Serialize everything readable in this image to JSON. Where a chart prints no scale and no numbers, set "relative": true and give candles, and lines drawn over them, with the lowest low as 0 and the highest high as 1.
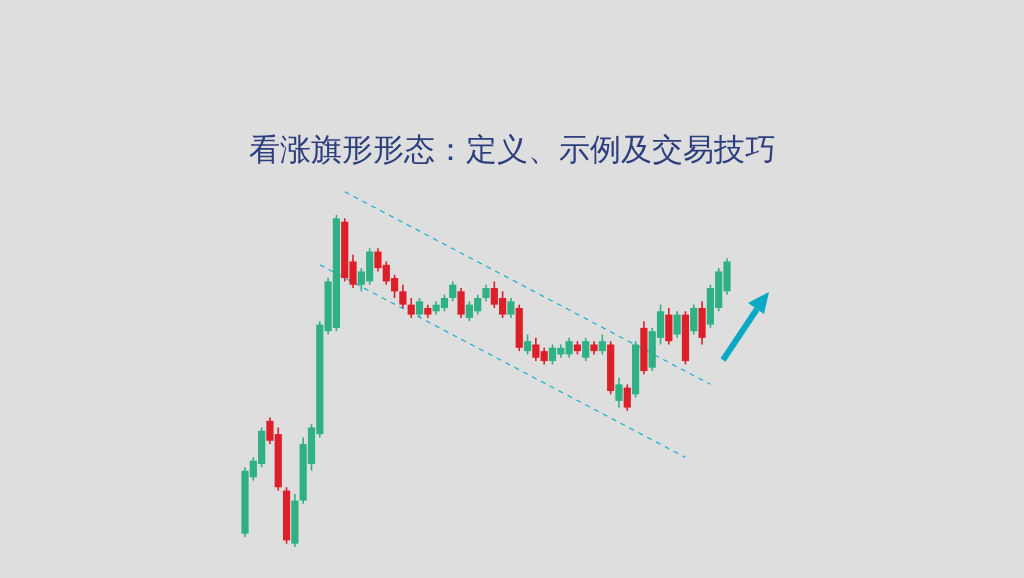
{
  "chart_data": {
    "type": "candlestick",
    "title": "看涨旗形形态：定义、示例及交易技巧",
    "relative": true,
    "line_style": "dashed",
    "categories": [
      null,
      null,
      null,
      null,
      null,
      null,
      null,
      null,
      null,
      null,
      null,
      null,
      null,
      null,
      null,
      null,
      null,
      null,
      null,
      null,
      null,
      null,
      null,
      null,
      null,
      null,
      null,
      null,
      null,
      null,
      null,
      null,
      null,
      null,
      null,
      null,
      null,
      null,
      null,
      null,
      null,
      null,
      null,
      null,
      null,
      null,
      null,
      null,
      null,
      null,
      null,
      null,
      null,
      null,
      null,
      null,
      null,
      null,
      null
    ],
    "ohlc": [
      [
        0.04,
        0.24,
        0.03,
        0.23
      ],
      [
        0.21,
        0.27,
        0.2,
        0.26
      ],
      [
        0.25,
        0.36,
        0.24,
        0.35
      ],
      [
        0.38,
        0.39,
        0.31,
        0.32
      ],
      [
        0.34,
        0.36,
        0.17,
        0.18
      ],
      [
        0.17,
        0.18,
        0.01,
        0.02
      ],
      [
        0.01,
        0.16,
        0,
        0.14
      ],
      [
        0.14,
        0.33,
        0.13,
        0.31
      ],
      [
        0.25,
        0.37,
        0.23,
        0.36
      ],
      [
        0.34,
        0.68,
        0.33,
        0.67
      ],
      [
        0.65,
        0.81,
        0.64,
        0.8
      ],
      [
        0.66,
        1,
        0.65,
        0.99
      ],
      [
        0.98,
        0.99,
        0.8,
        0.81
      ],
      [
        0.86,
        0.88,
        0.78,
        0.79
      ],
      [
        0.79,
        0.84,
        0.77,
        0.83
      ],
      [
        0.8,
        0.9,
        0.79,
        0.89
      ],
      [
        0.89,
        0.9,
        0.83,
        0.84
      ],
      [
        0.85,
        0.86,
        0.79,
        0.8
      ],
      [
        0.81,
        0.82,
        0.75,
        0.77
      ],
      [
        0.77,
        0.79,
        0.72,
        0.73
      ],
      [
        0.73,
        0.75,
        0.69,
        0.7
      ],
      [
        0.7,
        0.75,
        0.69,
        0.74
      ],
      [
        0.72,
        0.73,
        0.69,
        0.7
      ],
      [
        0.71,
        0.74,
        0.7,
        0.73
      ],
      [
        0.72,
        0.76,
        0.71,
        0.75
      ],
      [
        0.75,
        0.8,
        0.74,
        0.79
      ],
      [
        0.77,
        0.78,
        0.69,
        0.7
      ],
      [
        0.69,
        0.74,
        0.68,
        0.73
      ],
      [
        0.71,
        0.76,
        0.7,
        0.75
      ],
      [
        0.75,
        0.79,
        0.74,
        0.78
      ],
      [
        0.78,
        0.8,
        0.72,
        0.73
      ],
      [
        0.75,
        0.77,
        0.69,
        0.7
      ],
      [
        0.7,
        0.75,
        0.69,
        0.74
      ],
      [
        0.72,
        0.73,
        0.59,
        0.6
      ],
      [
        0.59,
        0.64,
        0.58,
        0.62
      ],
      [
        0.61,
        0.63,
        0.56,
        0.57
      ],
      [
        0.59,
        0.6,
        0.55,
        0.56
      ],
      [
        0.56,
        0.61,
        0.55,
        0.6
      ],
      [
        0.58,
        0.61,
        0.57,
        0.6
      ],
      [
        0.58,
        0.63,
        0.57,
        0.62
      ],
      [
        0.61,
        0.62,
        0.58,
        0.59
      ],
      [
        0.57,
        0.63,
        0.56,
        0.62
      ],
      [
        0.61,
        0.62,
        0.58,
        0.59
      ],
      [
        0.59,
        0.64,
        0.58,
        0.62
      ],
      [
        0.61,
        0.62,
        0.46,
        0.47
      ],
      [
        0.44,
        0.51,
        0.42,
        0.49
      ],
      [
        0.48,
        0.49,
        0.41,
        0.42
      ],
      [
        0.46,
        0.62,
        0.45,
        0.61
      ],
      [
        0.66,
        0.68,
        0.52,
        0.53
      ],
      [
        0.54,
        0.66,
        0.53,
        0.65
      ],
      [
        0.63,
        0.73,
        0.61,
        0.71
      ],
      [
        0.7,
        0.72,
        0.61,
        0.62
      ],
      [
        0.64,
        0.71,
        0.63,
        0.7
      ],
      [
        0.7,
        0.71,
        0.55,
        0.56
      ],
      [
        0.65,
        0.73,
        0.64,
        0.72
      ],
      [
        0.72,
        0.74,
        0.61,
        0.63
      ],
      [
        0.67,
        0.79,
        0.66,
        0.78
      ],
      [
        0.72,
        0.84,
        0.71,
        0.83
      ],
      [
        0.77,
        0.87,
        0.76,
        0.86
      ]
    ],
    "series": [
      {
        "type": "line",
        "color": "#1aaed0",
        "values": [
          null,
          null,
          null,
          null,
          null,
          null,
          null,
          null,
          null,
          null,
          null,
          null,
          1.07,
          null,
          null,
          null,
          null,
          null,
          null,
          null,
          null,
          null,
          null,
          null,
          null,
          null,
          null,
          null,
          null,
          null,
          null,
          null,
          null,
          null,
          null,
          null,
          null,
          null,
          null,
          null,
          null,
          null,
          null,
          null,
          null,
          null,
          null,
          null,
          null,
          null,
          null,
          null,
          null,
          null,
          null,
          null,
          0.49,
          null,
          null
        ]
      },
      {
        "type": "line",
        "color": "#1aaed0",
        "values": [
          null,
          null,
          null,
          null,
          null,
          null,
          null,
          null,
          null,
          0.85,
          null,
          null,
          null,
          null,
          null,
          null,
          null,
          null,
          null,
          null,
          null,
          null,
          null,
          null,
          null,
          null,
          null,
          null,
          null,
          null,
          null,
          null,
          null,
          null,
          null,
          null,
          null,
          null,
          null,
          null,
          null,
          null,
          null,
          null,
          null,
          null,
          null,
          null,
          null,
          null,
          null,
          null,
          null,
          0.27,
          null,
          null,
          null,
          null,
          null
        ]
      }
    ]
  }
}
